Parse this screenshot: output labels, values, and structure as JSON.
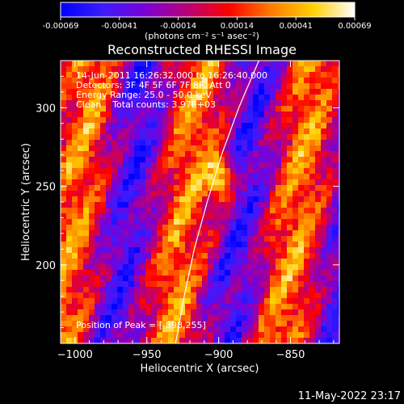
{
  "colorbar": {
    "tick_labels": [
      "-0.00069",
      "-0.00041",
      "-0.00014",
      "0.00014",
      "0.00041",
      "0.00069"
    ],
    "unit_label": "(photons cm⁻² s⁻¹ asec⁻²)",
    "colors": [
      "#0000ff",
      "#3b1cff",
      "#7a00d6",
      "#b8007a",
      "#ff0000",
      "#ff7a00",
      "#ffd000",
      "#ffffff"
    ]
  },
  "chart_data": {
    "type": "heatmap",
    "title": "Reconstructed RHESSI Image",
    "xlabel": "Heliocentric X (arcsec)",
    "ylabel": "Heliocentric Y (arcsec)",
    "xlim": [
      -1010,
      -816
    ],
    "ylim": [
      150,
      330
    ],
    "x_ticks": [
      -1000,
      -950,
      -900,
      -850
    ],
    "y_ticks": [
      200,
      250,
      300
    ],
    "peak": {
      "x": -898,
      "y": 255
    },
    "limb_curve": [
      [
        -930,
        150
      ],
      [
        -924,
        180
      ],
      [
        -917,
        210
      ],
      [
        -908,
        240
      ],
      [
        -898,
        270
      ],
      [
        -886,
        300
      ],
      [
        -872,
        330
      ]
    ]
  },
  "annotations": {
    "line1": "14-Jun-2011 16:26:32.000 to 16:26:40.000",
    "line2": "Detectors: 3F 4F 5F 6F 7F 8F, Att 0",
    "line3": "Energy Range: 25.0 - 50.0 keV",
    "line4": "Clean    Total counts: 3.97E+03",
    "peak_label": "Position of Peak = [-898,255]"
  },
  "footer": {
    "timestamp": "11-May-2022 23:17"
  }
}
